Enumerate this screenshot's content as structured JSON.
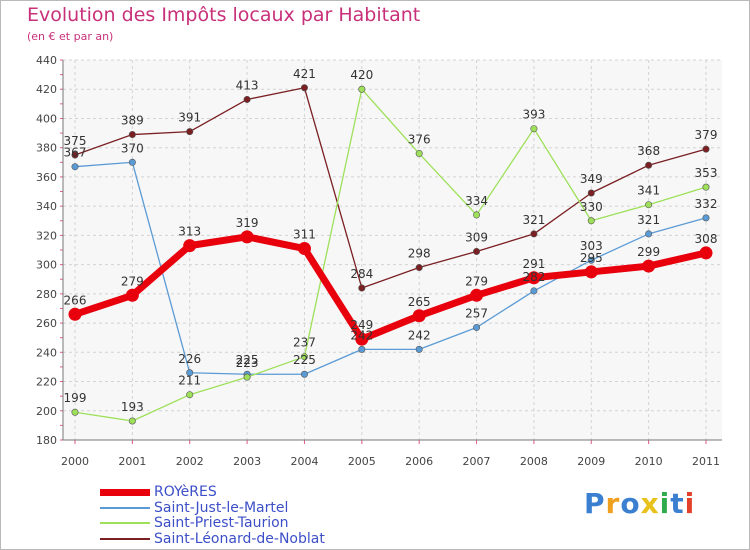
{
  "title": "Evolution des Impôts locaux par Habitant",
  "subtitle": "(en € et par an)",
  "brand": {
    "letters": [
      "P",
      "r",
      "o",
      "x",
      "i",
      "t",
      "i"
    ],
    "colors": [
      "#3b7fd1",
      "#f0a020",
      "#3b7fd1",
      "#e8c21a",
      "#2eab4c",
      "#3b7fd1",
      "#e3402a"
    ]
  },
  "chart_data": {
    "type": "line",
    "x": [
      "2000",
      "2001",
      "2002",
      "2003",
      "2004",
      "2005",
      "2006",
      "2007",
      "2008",
      "2009",
      "2010",
      "2011"
    ],
    "ylim": [
      180,
      440
    ],
    "yticks": [
      180,
      200,
      220,
      240,
      260,
      280,
      300,
      320,
      340,
      360,
      380,
      400,
      420,
      440
    ],
    "grid": true,
    "legend_position": "bottom-left",
    "series": [
      {
        "name": "ROYèRES",
        "color": "#e8000c",
        "values": [
          266,
          279,
          313,
          319,
          311,
          249,
          265,
          279,
          291,
          295,
          299,
          308
        ]
      },
      {
        "name": "Saint-Just-le-Martel",
        "color": "#5b9bd5",
        "values": [
          367,
          370,
          226,
          225,
          225,
          242,
          242,
          257,
          282,
          303,
          321,
          332
        ]
      },
      {
        "name": "Saint-Priest-Taurion",
        "color": "#9ee05a",
        "values": [
          199,
          193,
          211,
          223,
          237,
          420,
          376,
          334,
          393,
          330,
          341,
          353
        ]
      },
      {
        "name": "Saint-Léonard-de-Noblat",
        "color": "#7a1f22",
        "values": [
          375,
          389,
          391,
          413,
          421,
          284,
          298,
          309,
          321,
          349,
          368,
          379
        ]
      }
    ]
  }
}
